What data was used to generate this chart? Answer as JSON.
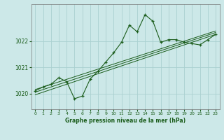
{
  "title": "Graphe pression niveau de la mer (hPa)",
  "bg_color": "#cce8e8",
  "grid_color": "#aad0d0",
  "line_color": "#1a5c1a",
  "x_ticks": [
    0,
    1,
    2,
    3,
    4,
    5,
    6,
    7,
    8,
    9,
    10,
    11,
    12,
    13,
    14,
    15,
    16,
    17,
    18,
    19,
    20,
    21,
    22,
    23
  ],
  "ylim": [
    1019.4,
    1023.4
  ],
  "yticks": [
    1020,
    1021,
    1022
  ],
  "pressure_data": [
    1020.1,
    1020.25,
    1020.35,
    1020.6,
    1020.45,
    1019.8,
    1019.9,
    1020.55,
    1020.85,
    1021.2,
    1021.55,
    1021.95,
    1022.6,
    1022.35,
    1023.0,
    1022.75,
    1021.95,
    1022.05,
    1022.05,
    1021.95,
    1021.9,
    1021.85,
    1022.05,
    1022.25
  ],
  "trend_lines": [
    {
      "x0": 0,
      "y0": 1019.95,
      "x1": 23,
      "y1": 1022.25
    },
    {
      "x0": 0,
      "y0": 1020.05,
      "x1": 23,
      "y1": 1022.32
    },
    {
      "x0": 0,
      "y0": 1020.15,
      "x1": 23,
      "y1": 1022.38
    }
  ]
}
